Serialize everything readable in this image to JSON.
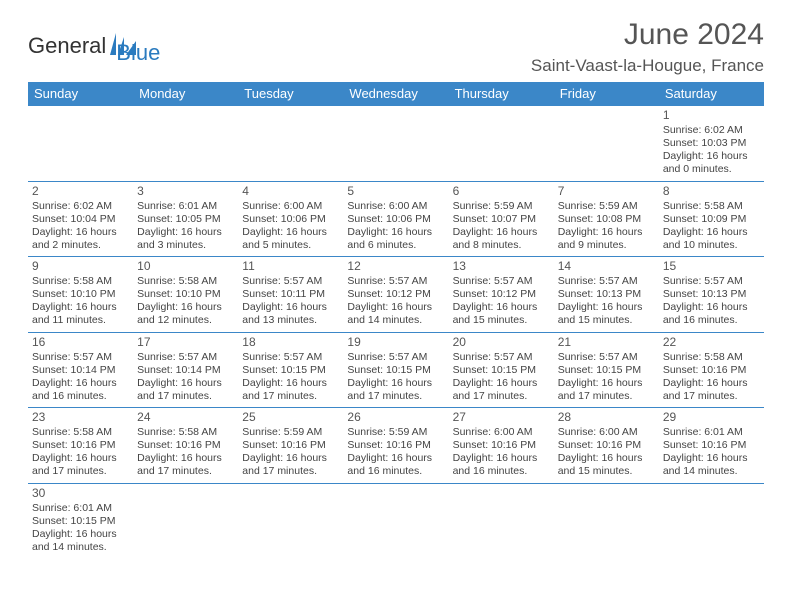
{
  "brand": {
    "name1": "General",
    "name2": "Blue"
  },
  "title": "June 2024",
  "location": "Saint-Vaast-la-Hougue, France",
  "colors": {
    "header_bg": "#3b87c8",
    "header_fg": "#ffffff",
    "rule": "#3b87c8",
    "text": "#444444",
    "title": "#555555"
  },
  "dayHeaders": [
    "Sunday",
    "Monday",
    "Tuesday",
    "Wednesday",
    "Thursday",
    "Friday",
    "Saturday"
  ],
  "leadingBlanks": 6,
  "days": [
    {
      "n": "1",
      "sr": "6:02 AM",
      "ss": "10:03 PM",
      "dl": "16 hours and 0 minutes."
    },
    {
      "n": "2",
      "sr": "6:02 AM",
      "ss": "10:04 PM",
      "dl": "16 hours and 2 minutes."
    },
    {
      "n": "3",
      "sr": "6:01 AM",
      "ss": "10:05 PM",
      "dl": "16 hours and 3 minutes."
    },
    {
      "n": "4",
      "sr": "6:00 AM",
      "ss": "10:06 PM",
      "dl": "16 hours and 5 minutes."
    },
    {
      "n": "5",
      "sr": "6:00 AM",
      "ss": "10:06 PM",
      "dl": "16 hours and 6 minutes."
    },
    {
      "n": "6",
      "sr": "5:59 AM",
      "ss": "10:07 PM",
      "dl": "16 hours and 8 minutes."
    },
    {
      "n": "7",
      "sr": "5:59 AM",
      "ss": "10:08 PM",
      "dl": "16 hours and 9 minutes."
    },
    {
      "n": "8",
      "sr": "5:58 AM",
      "ss": "10:09 PM",
      "dl": "16 hours and 10 minutes."
    },
    {
      "n": "9",
      "sr": "5:58 AM",
      "ss": "10:10 PM",
      "dl": "16 hours and 11 minutes."
    },
    {
      "n": "10",
      "sr": "5:58 AM",
      "ss": "10:10 PM",
      "dl": "16 hours and 12 minutes."
    },
    {
      "n": "11",
      "sr": "5:57 AM",
      "ss": "10:11 PM",
      "dl": "16 hours and 13 minutes."
    },
    {
      "n": "12",
      "sr": "5:57 AM",
      "ss": "10:12 PM",
      "dl": "16 hours and 14 minutes."
    },
    {
      "n": "13",
      "sr": "5:57 AM",
      "ss": "10:12 PM",
      "dl": "16 hours and 15 minutes."
    },
    {
      "n": "14",
      "sr": "5:57 AM",
      "ss": "10:13 PM",
      "dl": "16 hours and 15 minutes."
    },
    {
      "n": "15",
      "sr": "5:57 AM",
      "ss": "10:13 PM",
      "dl": "16 hours and 16 minutes."
    },
    {
      "n": "16",
      "sr": "5:57 AM",
      "ss": "10:14 PM",
      "dl": "16 hours and 16 minutes."
    },
    {
      "n": "17",
      "sr": "5:57 AM",
      "ss": "10:14 PM",
      "dl": "16 hours and 17 minutes."
    },
    {
      "n": "18",
      "sr": "5:57 AM",
      "ss": "10:15 PM",
      "dl": "16 hours and 17 minutes."
    },
    {
      "n": "19",
      "sr": "5:57 AM",
      "ss": "10:15 PM",
      "dl": "16 hours and 17 minutes."
    },
    {
      "n": "20",
      "sr": "5:57 AM",
      "ss": "10:15 PM",
      "dl": "16 hours and 17 minutes."
    },
    {
      "n": "21",
      "sr": "5:57 AM",
      "ss": "10:15 PM",
      "dl": "16 hours and 17 minutes."
    },
    {
      "n": "22",
      "sr": "5:58 AM",
      "ss": "10:16 PM",
      "dl": "16 hours and 17 minutes."
    },
    {
      "n": "23",
      "sr": "5:58 AM",
      "ss": "10:16 PM",
      "dl": "16 hours and 17 minutes."
    },
    {
      "n": "24",
      "sr": "5:58 AM",
      "ss": "10:16 PM",
      "dl": "16 hours and 17 minutes."
    },
    {
      "n": "25",
      "sr": "5:59 AM",
      "ss": "10:16 PM",
      "dl": "16 hours and 17 minutes."
    },
    {
      "n": "26",
      "sr": "5:59 AM",
      "ss": "10:16 PM",
      "dl": "16 hours and 16 minutes."
    },
    {
      "n": "27",
      "sr": "6:00 AM",
      "ss": "10:16 PM",
      "dl": "16 hours and 16 minutes."
    },
    {
      "n": "28",
      "sr": "6:00 AM",
      "ss": "10:16 PM",
      "dl": "16 hours and 15 minutes."
    },
    {
      "n": "29",
      "sr": "6:01 AM",
      "ss": "10:16 PM",
      "dl": "16 hours and 14 minutes."
    },
    {
      "n": "30",
      "sr": "6:01 AM",
      "ss": "10:15 PM",
      "dl": "16 hours and 14 minutes."
    }
  ],
  "labels": {
    "sunrise": "Sunrise:",
    "sunset": "Sunset:",
    "daylight": "Daylight:"
  }
}
